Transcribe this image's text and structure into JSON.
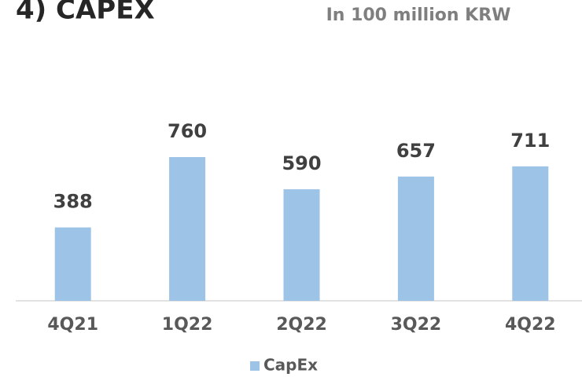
{
  "chart_data": {
    "type": "bar",
    "title": "4) CAPEX",
    "subtitle": "In 100 million KRW",
    "categories": [
      "4Q21",
      "1Q22",
      "2Q22",
      "3Q22",
      "4Q22"
    ],
    "series": [
      {
        "name": "CapEx",
        "color": "#9dc3e6",
        "values": [
          388,
          760,
          590,
          657,
          711
        ]
      }
    ],
    "legend": "bottom"
  }
}
